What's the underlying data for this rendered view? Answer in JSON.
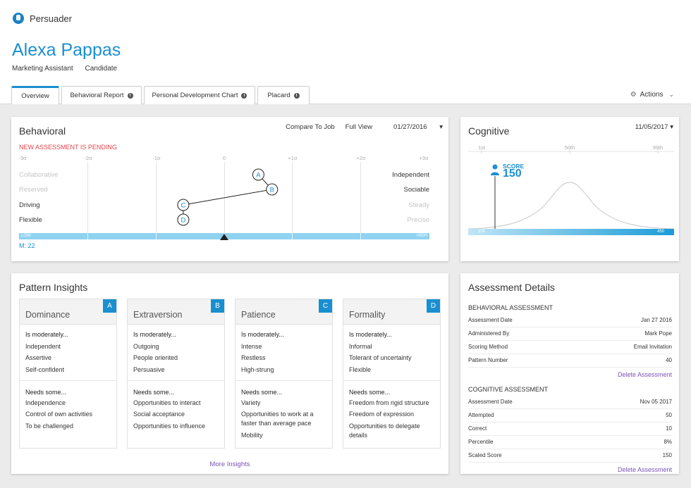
{
  "app": {
    "name": "Persuader"
  },
  "person": {
    "name": "Alexa Pappas",
    "title": "Marketing Assistant",
    "status": "Candidate"
  },
  "tabs": [
    {
      "label": "Overview",
      "info": false
    },
    {
      "label": "Behavioral Report",
      "info": true
    },
    {
      "label": "Personal Development Chart",
      "info": true
    },
    {
      "label": "Placard",
      "info": true
    }
  ],
  "actions": {
    "label": "Actions"
  },
  "behavioral": {
    "title": "Behavioral",
    "compare_label": "Compare To Job",
    "full_view_label": "Full View",
    "date": "01/27/2016",
    "pending": "NEW ASSESSMENT IS PENDING",
    "scale": [
      "-3σ",
      "-2σ",
      "-1σ",
      "0",
      "+1σ",
      "+2σ",
      "+3σ"
    ],
    "left_traits": [
      "Collaborative",
      "Reserved",
      "Driving",
      "Flexible"
    ],
    "right_traits": [
      "Independent",
      "Sociable",
      "Steady",
      "Precise"
    ],
    "low_label": "LOW",
    "high_label": "HIGH",
    "m_label": "M: 22",
    "points": [
      {
        "label": "A",
        "sigma": 0.5
      },
      {
        "label": "B",
        "sigma": 0.7
      },
      {
        "label": "C",
        "sigma": -0.6
      },
      {
        "label": "D",
        "sigma": -0.6
      }
    ],
    "marker_sigma": 0
  },
  "cognitive": {
    "title": "Cognitive",
    "date": "11/05/2017",
    "percentiles": [
      "1st",
      "50th",
      "99th"
    ],
    "score_label": "SCORE",
    "score": "150",
    "range_low": "100",
    "range_high": "450"
  },
  "pattern": {
    "title": "Pattern Insights",
    "more_label": "More Insights",
    "cards": [
      {
        "title": "Dominance",
        "badge": "A",
        "mod_heading": "Is moderately...",
        "mod": [
          "Independent",
          "Assertive",
          "Self-confident"
        ],
        "needs_heading": "Needs some...",
        "needs": [
          "Independence",
          "Control of own activities",
          "To be challenged"
        ]
      },
      {
        "title": "Extraversion",
        "badge": "B",
        "mod_heading": "Is moderately...",
        "mod": [
          "Outgoing",
          "People oriented",
          "Persuasive"
        ],
        "needs_heading": "Needs some...",
        "needs": [
          "Opportunities to interact",
          "Social acceptance",
          "Opportunities to influence"
        ]
      },
      {
        "title": "Patience",
        "badge": "C",
        "mod_heading": "Is moderately...",
        "mod": [
          "Intense",
          "Restless",
          "High-strung"
        ],
        "needs_heading": "Needs some...",
        "needs": [
          "Variety",
          "Opportunities to work at a faster than average pace",
          "Mobility"
        ]
      },
      {
        "title": "Formality",
        "badge": "D",
        "mod_heading": "Is moderately...",
        "mod": [
          "Informal",
          "Tolerant of uncertainty",
          "Flexible"
        ],
        "needs_heading": "Needs some...",
        "needs": [
          "Freedom from rigid structure",
          "Freedom of expression",
          "Opportunities to delegate details"
        ]
      }
    ]
  },
  "details": {
    "title": "Assessment Details",
    "behavioral_title": "BEHAVIORAL ASSESSMENT",
    "behavioral_rows": [
      {
        "k": "Assessment Date",
        "v": "Jan 27 2016"
      },
      {
        "k": "Administered By",
        "v": "Mark Pope"
      },
      {
        "k": "Scoring Method",
        "v": "Email Invitation"
      },
      {
        "k": "Pattern Number",
        "v": "40"
      }
    ],
    "cognitive_title": "COGNITIVE ASSESSMENT",
    "cognitive_rows": [
      {
        "k": "Assessment Date",
        "v": "Nov 05 2017"
      },
      {
        "k": "Attempted",
        "v": "50"
      },
      {
        "k": "Correct",
        "v": "10"
      },
      {
        "k": "Percentile",
        "v": "8%"
      },
      {
        "k": "Scaled Score",
        "v": "150"
      }
    ],
    "delete_label": "Delete Assessment"
  },
  "colors": {
    "accent": "#1a8fd0",
    "pending": "#e8424b",
    "link": "#7a52b8"
  }
}
